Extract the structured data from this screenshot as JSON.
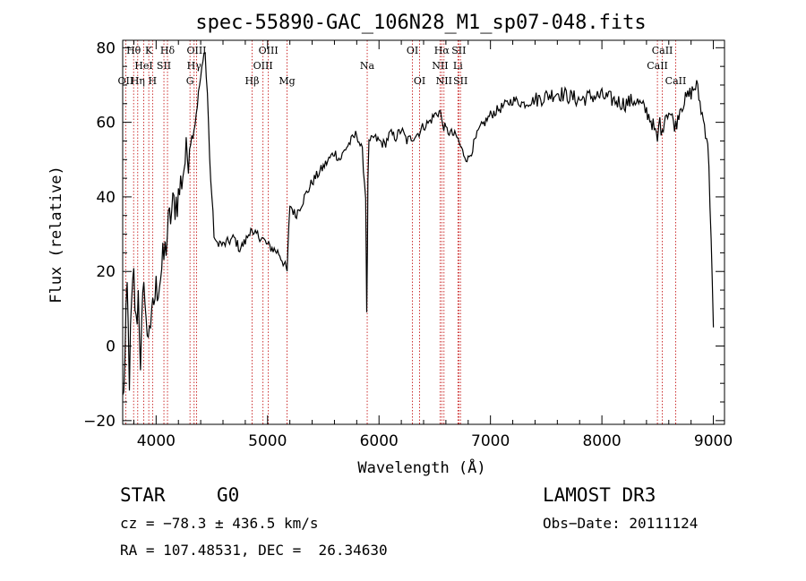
{
  "chart_data": {
    "type": "line",
    "title": "spec-55890-GAC_106N28_M1_sp07-048.fits",
    "xlabel": "Wavelength (Å)",
    "ylabel": "Flux (relative)",
    "xlim": [
      3700,
      9100
    ],
    "ylim": [
      -21,
      82
    ],
    "xticks": [
      4000,
      5000,
      6000,
      7000,
      8000,
      9000
    ],
    "yticks": [
      -20,
      0,
      20,
      40,
      60,
      80
    ],
    "ytick_labels": [
      "−20",
      "0",
      "20",
      "40",
      "60",
      "80"
    ],
    "series": [
      {
        "name": "spectrum",
        "x": [
          3700,
          3720,
          3740,
          3760,
          3780,
          3800,
          3820,
          3840,
          3860,
          3880,
          3900,
          3920,
          3940,
          3960,
          3980,
          4000,
          4030,
          4060,
          4080,
          4100,
          4130,
          4160,
          4200,
          4230,
          4260,
          4290,
          4310,
          4330,
          4350,
          4370,
          4390,
          4410,
          4430,
          4440,
          4450,
          4460,
          4470,
          4480,
          4500,
          4520,
          4540,
          4560,
          4600,
          4650,
          4700,
          4750,
          4800,
          4830,
          4850,
          4870,
          4900,
          4950,
          5000,
          5050,
          5100,
          5150,
          5175,
          5200,
          5250,
          5300,
          5350,
          5400,
          5450,
          5500,
          5550,
          5600,
          5650,
          5700,
          5750,
          5800,
          5850,
          5880,
          5890,
          5896,
          5900,
          5910,
          5950,
          6000,
          6050,
          6100,
          6150,
          6200,
          6250,
          6300,
          6350,
          6400,
          6450,
          6500,
          6550,
          6563,
          6600,
          6650,
          6700,
          6750,
          6800,
          6850,
          6900,
          7000,
          7100,
          7200,
          7300,
          7400,
          7500,
          7600,
          7700,
          7800,
          7900,
          8000,
          8100,
          8200,
          8300,
          8400,
          8450,
          8498,
          8520,
          8542,
          8560,
          8600,
          8662,
          8700,
          8750,
          8800,
          8850,
          8900,
          8950,
          8980,
          9000
        ],
        "y": [
          -15,
          -5,
          15,
          -8,
          10,
          18,
          5,
          14,
          -3,
          10,
          16,
          0,
          8,
          5,
          12,
          15,
          18,
          22,
          25,
          30,
          35,
          38,
          40,
          45,
          50,
          52,
          55,
          57,
          60,
          65,
          70,
          74,
          78,
          80,
          72,
          68,
          60,
          50,
          40,
          30,
          27,
          28,
          27,
          28,
          29,
          26,
          28,
          30,
          32,
          29,
          30,
          29,
          27,
          26,
          25,
          22,
          20,
          38,
          35,
          38,
          41,
          44,
          46,
          48,
          50,
          52,
          50,
          53,
          55,
          57,
          52,
          40,
          10,
          25,
          45,
          54,
          56,
          55,
          54,
          57,
          56,
          58,
          55,
          56,
          57,
          59,
          60,
          62,
          63,
          60,
          58,
          57,
          56,
          52,
          50,
          54,
          58,
          62,
          64,
          66,
          65,
          66,
          67,
          68,
          67,
          66,
          67,
          67,
          66,
          65,
          66,
          63,
          60,
          55,
          61,
          56,
          62,
          63,
          59,
          64,
          66,
          68,
          70,
          62,
          55,
          30,
          5
        ]
      }
    ],
    "spectral_lines": [
      {
        "label": "OII",
        "wavelength": 3727,
        "row": 2
      },
      {
        "label": "Hθ",
        "wavelength": 3798,
        "row": 0
      },
      {
        "label": "Hη",
        "wavelength": 3835,
        "row": 2
      },
      {
        "label": "HeI",
        "wavelength": 3889,
        "row": 1
      },
      {
        "label": "K",
        "wavelength": 3934,
        "row": 0
      },
      {
        "label": "H",
        "wavelength": 3968,
        "row": 2
      },
      {
        "label": "SII",
        "wavelength": 4070,
        "row": 1
      },
      {
        "label": "Hδ",
        "wavelength": 4102,
        "row": 0
      },
      {
        "label": "G",
        "wavelength": 4304,
        "row": 2
      },
      {
        "label": "Hγ",
        "wavelength": 4341,
        "row": 1
      },
      {
        "label": "OIII",
        "wavelength": 4363,
        "row": 0
      },
      {
        "label": "Hβ",
        "wavelength": 4861,
        "row": 2
      },
      {
        "label": "OIII",
        "wavelength": 4959,
        "row": 1
      },
      {
        "label": "OIII",
        "wavelength": 5007,
        "row": 0
      },
      {
        "label": "Mg",
        "wavelength": 5175,
        "row": 2
      },
      {
        "label": "Na",
        "wavelength": 5894,
        "row": 1
      },
      {
        "label": "OI",
        "wavelength": 6300,
        "row": 0
      },
      {
        "label": "OI",
        "wavelength": 6364,
        "row": 2
      },
      {
        "label": "NII",
        "wavelength": 6548,
        "row": 1
      },
      {
        "label": "Hα",
        "wavelength": 6563,
        "row": 0
      },
      {
        "label": "NII",
        "wavelength": 6583,
        "row": 2
      },
      {
        "label": "Li",
        "wavelength": 6708,
        "row": 1
      },
      {
        "label": "SII",
        "wavelength": 6716,
        "row": 0
      },
      {
        "label": "SII",
        "wavelength": 6731,
        "row": 2
      },
      {
        "label": "CaII",
        "wavelength": 8498,
        "row": 1
      },
      {
        "label": "CaII",
        "wavelength": 8542,
        "row": 0
      },
      {
        "label": "CaII",
        "wavelength": 8662,
        "row": 2
      }
    ]
  },
  "info": {
    "object_class": "STAR",
    "subclass": "G0",
    "survey": "LAMOST DR3",
    "cz": "cz = −78.3 ± 436.5 km/s",
    "obs_date": "Obs−Date: 20111124",
    "coords": "RA = 107.48531, DEC =  26.34630"
  }
}
